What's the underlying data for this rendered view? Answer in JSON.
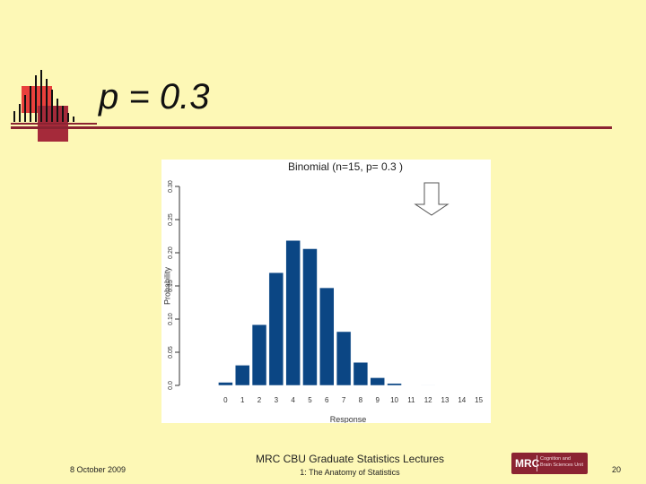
{
  "slide": {
    "title": "p = 0.3",
    "footer": {
      "date": "8 October 2009",
      "course": "MRC CBU Graduate Statistics Lectures",
      "lecture": "1: The Anatomy of Statistics",
      "page": "20"
    },
    "logo": {
      "abbr": "MRC",
      "subtitle_line1": "Cognition and",
      "subtitle_line2": "Brain Sciences Unit"
    },
    "colors": {
      "background": "#FDF8B6",
      "accent": "#8B2332",
      "bars": "#0B4684"
    },
    "arrow_icon": "down-arrow-icon"
  },
  "chart_data": {
    "type": "bar",
    "title": "Binomial (n=15, p= 0.3 )",
    "xlabel": "Response",
    "ylabel": "Probability",
    "categories": [
      "0",
      "1",
      "2",
      "3",
      "4",
      "5",
      "6",
      "7",
      "8",
      "9",
      "10",
      "11",
      "12",
      "13",
      "14",
      "15"
    ],
    "values": [
      0.0047,
      0.0305,
      0.0916,
      0.17,
      0.2186,
      0.2061,
      0.1472,
      0.0811,
      0.0348,
      0.0116,
      0.003,
      0.0006,
      0.0001,
      0.0,
      0.0,
      0.0
    ],
    "yticks": [
      "0.0",
      "0.05",
      "0.10",
      "0.15",
      "0.20",
      "0.25",
      "0.30"
    ],
    "ylim": [
      0,
      0.3
    ],
    "grid": false,
    "legend": "none"
  }
}
